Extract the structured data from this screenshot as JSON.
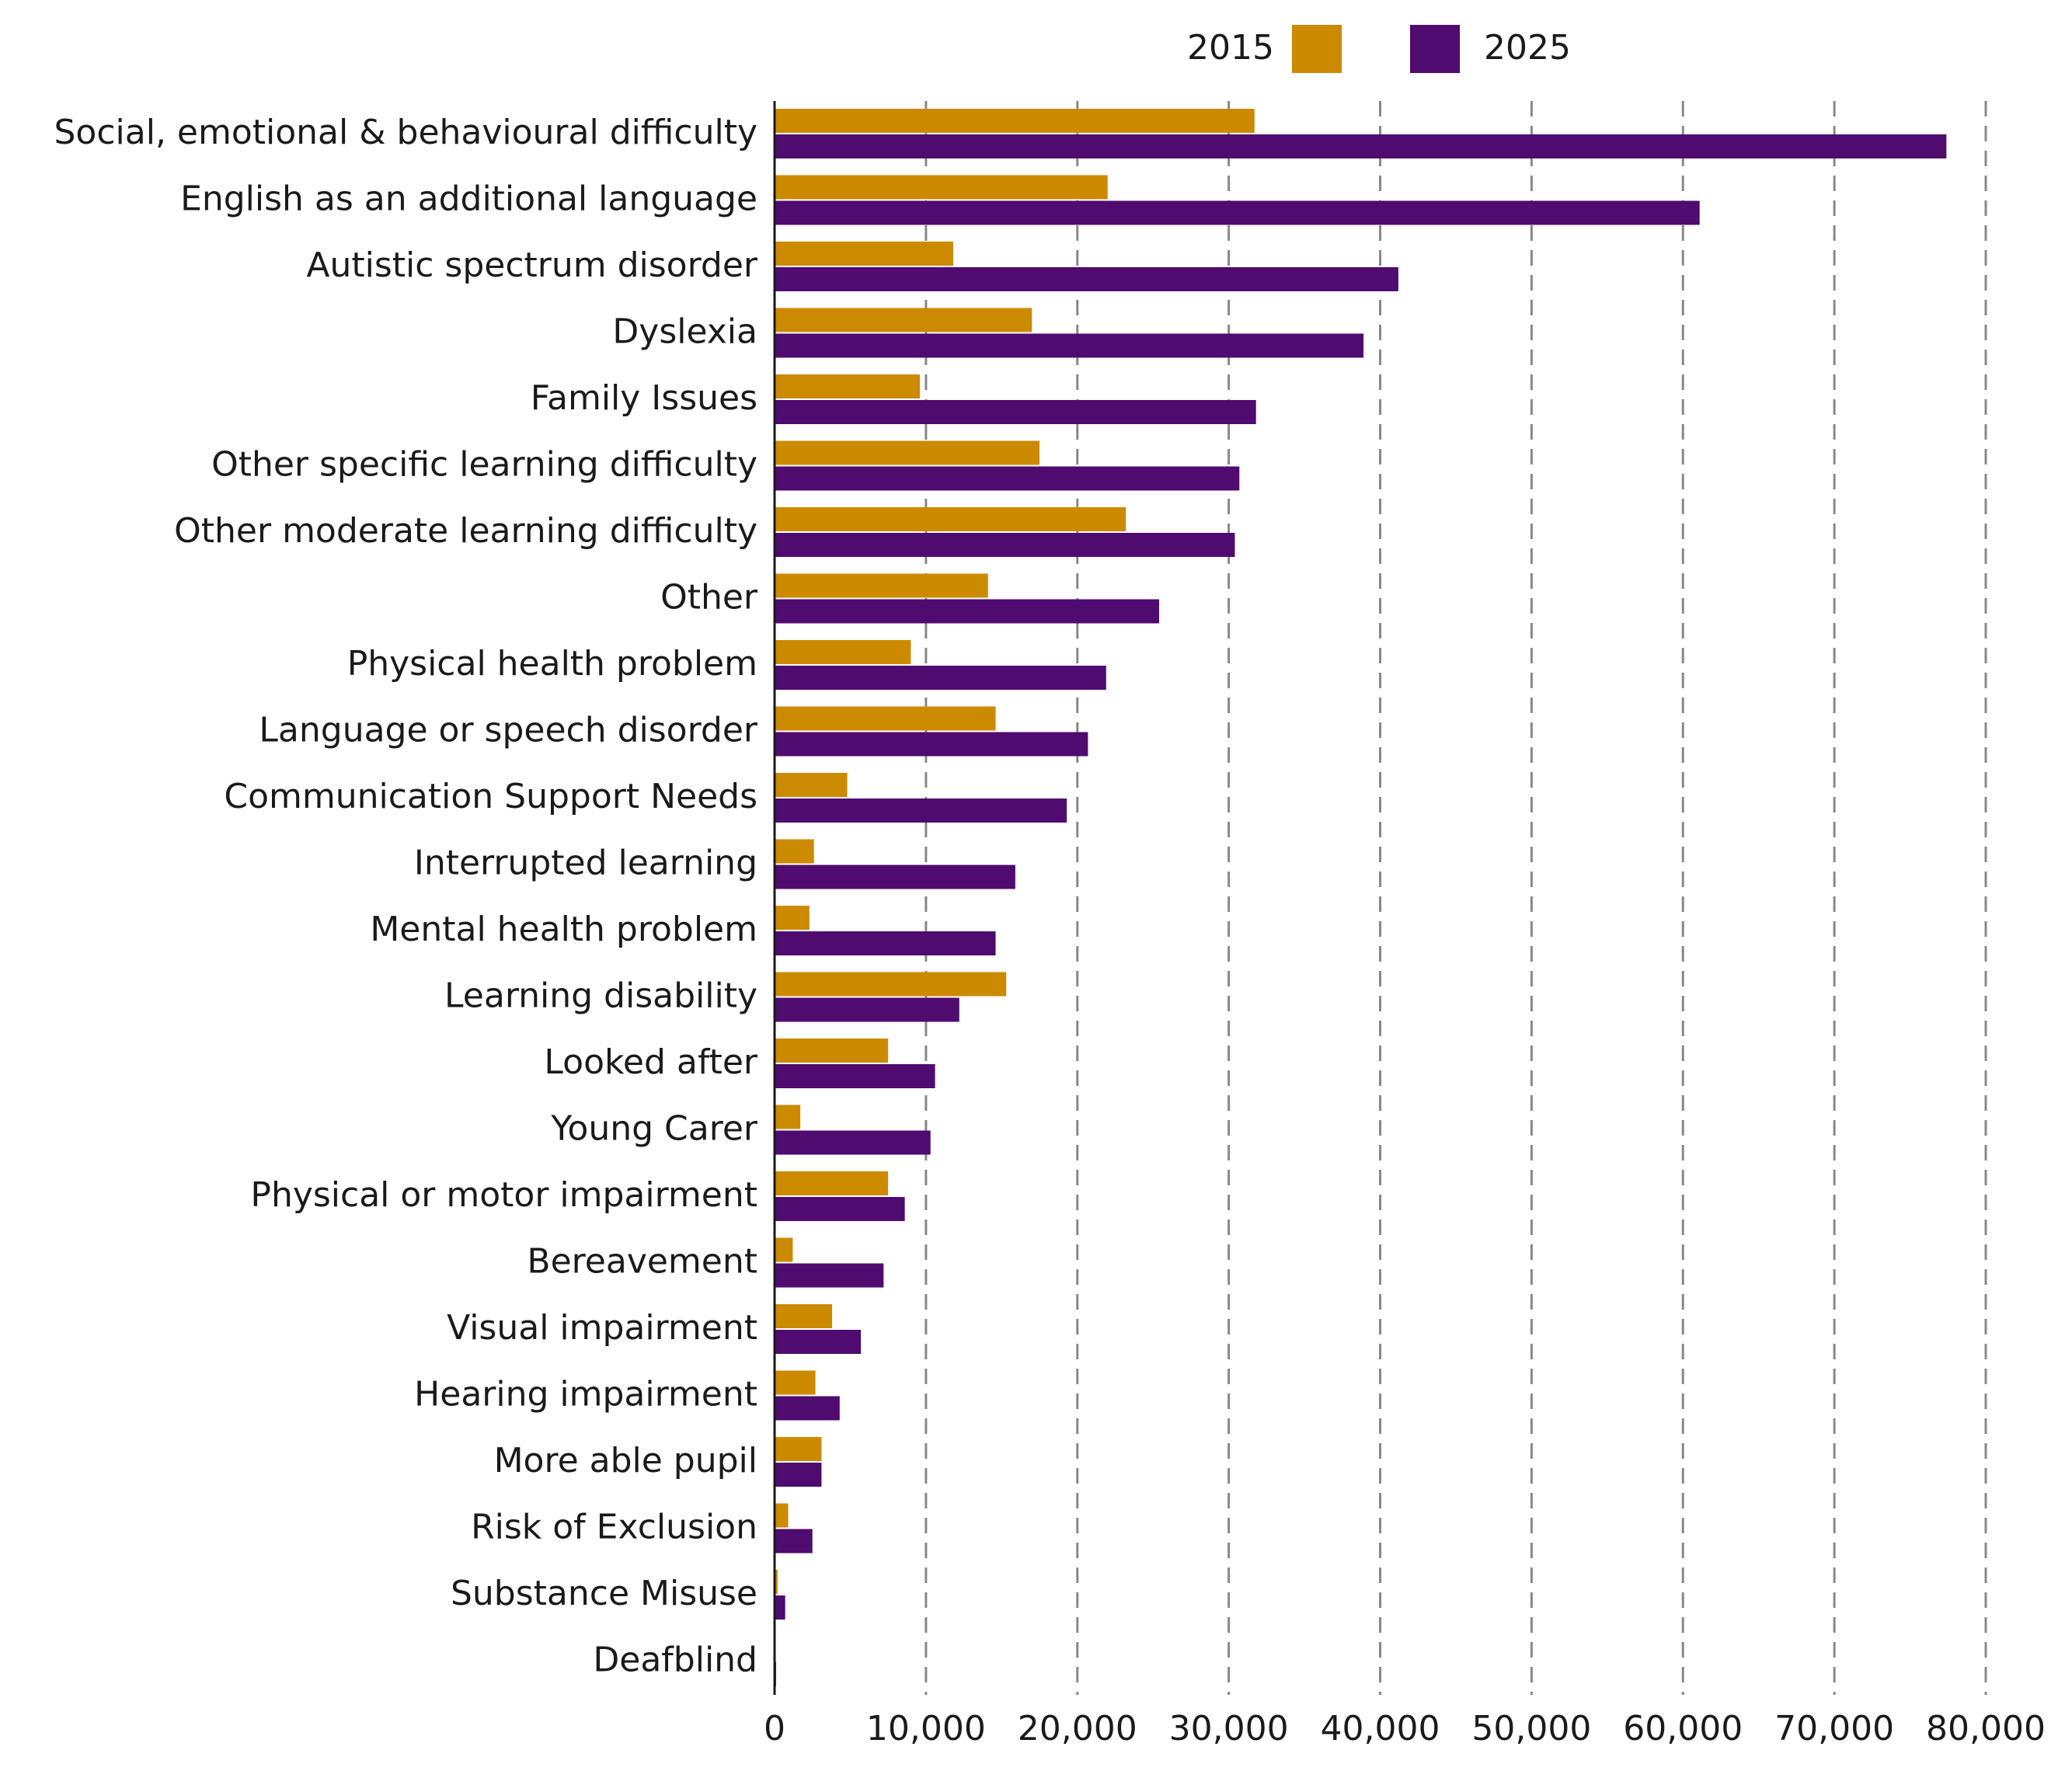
{
  "chart_data": {
    "type": "barh",
    "categories": [
      "Social, emotional & behavioural difficulty",
      "English as an additional language",
      "Autistic spectrum disorder",
      "Dyslexia",
      "Family Issues",
      "Other specific learning difficulty",
      "Other moderate learning difficulty",
      "Other",
      "Physical health problem",
      "Language or speech disorder",
      "Communication Support Needs",
      "Interrupted learning",
      "Mental health problem",
      "Learning disability",
      "Looked after",
      "Young Carer",
      "Physical or motor impairment",
      "Bereavement",
      "Visual impairment",
      "Hearing impairment",
      "More able pupil",
      "Risk of Exclusion",
      "Substance Misuse",
      "Deafblind"
    ],
    "series": [
      {
        "name": "2015",
        "color": "#cc8a00",
        "values": [
          31700,
          22000,
          11800,
          17000,
          9600,
          17500,
          23200,
          14100,
          9000,
          14600,
          4800,
          2600,
          2300,
          15300,
          7500,
          1700,
          7500,
          1200,
          3800,
          2700,
          3100,
          900,
          200,
          50
        ]
      },
      {
        "name": "2025",
        "color": "#4f0b6f",
        "values": [
          77400,
          61100,
          41200,
          38900,
          31800,
          30700,
          30400,
          25400,
          21900,
          20700,
          19300,
          15900,
          14600,
          12200,
          10600,
          10300,
          8600,
          7200,
          5700,
          4300,
          3100,
          2500,
          700,
          100
        ]
      }
    ],
    "xlim": [
      0,
      80000
    ],
    "xticks": [
      0,
      {
        "value": 10000,
        "label": "10,000"
      },
      {
        "value": 20000,
        "label": "20,000"
      },
      {
        "value": 30000,
        "label": "30,000"
      },
      {
        "value": 40000,
        "label": "40,000"
      },
      {
        "value": 50000,
        "label": "50,000"
      },
      {
        "value": 60000,
        "label": "60,000"
      },
      {
        "value": 70000,
        "label": "70,000"
      },
      {
        "value": 80000,
        "label": "80,000"
      }
    ],
    "grid": true,
    "legend": "top"
  }
}
